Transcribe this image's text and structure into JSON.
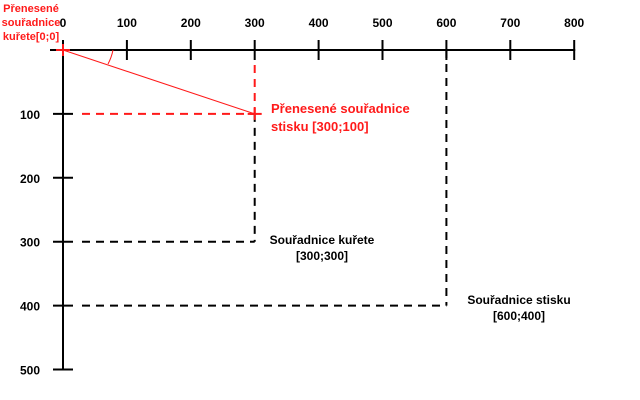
{
  "colors": {
    "axis": "#000000",
    "transformed": "#ff1a1a"
  },
  "x_ticks": [
    0,
    100,
    200,
    300,
    400,
    500,
    600,
    700,
    800
  ],
  "y_ticks": [
    100,
    200,
    300,
    400,
    500
  ],
  "points": {
    "chicken": {
      "x": 300,
      "y": 300
    },
    "press": {
      "x": 600,
      "y": 400
    },
    "transformed_press": {
      "x": 300,
      "y": 100
    }
  },
  "labels": {
    "origin_line1": "Přenesené",
    "origin_line2": "souřadnice",
    "origin_line3": "kuřete[0;0]",
    "transformed_line1": "Přenesené souřadnice",
    "transformed_line2": "stisku [300;100]",
    "chicken_line1": "Souřadnice kuřete",
    "chicken_line2": "[300;300]",
    "press_line1": "Souřadnice stisku",
    "press_line2": "[600;400]"
  }
}
